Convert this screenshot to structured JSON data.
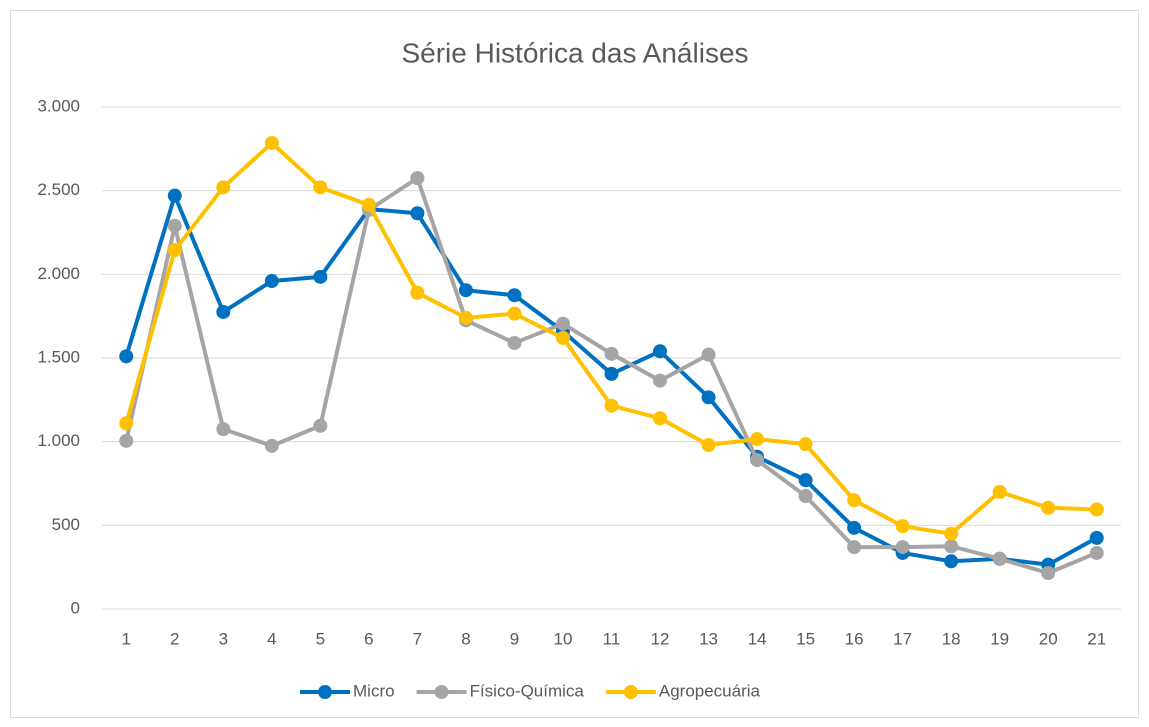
{
  "chart_data": {
    "type": "line",
    "title": "Série Histórica das Análises",
    "categories": [
      "1",
      "2",
      "3",
      "4",
      "5",
      "6",
      "7",
      "8",
      "9",
      "10",
      "11",
      "12",
      "13",
      "14",
      "15",
      "16",
      "17",
      "18",
      "19",
      "20",
      "21"
    ],
    "series": [
      {
        "name": "Micro",
        "color": "#0070c0",
        "values": [
          1510,
          2470,
          1775,
          1960,
          1985,
          2390,
          2365,
          1905,
          1875,
          1660,
          1405,
          1540,
          1265,
          910,
          770,
          485,
          335,
          285,
          300,
          265,
          425
        ]
      },
      {
        "name": "Físico-Química",
        "color": "#a5a5a5",
        "values": [
          1005,
          2290,
          1075,
          975,
          1095,
          2385,
          2575,
          1725,
          1590,
          1705,
          1525,
          1365,
          1520,
          890,
          675,
          370,
          370,
          375,
          300,
          215,
          335
        ]
      },
      {
        "name": "Agropecuária",
        "color": "#ffc000",
        "values": [
          1110,
          2145,
          2520,
          2785,
          2520,
          2415,
          1890,
          1740,
          1765,
          1620,
          1215,
          1140,
          980,
          1015,
          985,
          650,
          495,
          450,
          700,
          605,
          595
        ]
      }
    ],
    "ylim": [
      0,
      3000
    ],
    "yticks": [
      0,
      500,
      {
        "value": 1000,
        "label": "1.000"
      },
      {
        "value": 1500,
        "label": "1.500"
      },
      {
        "value": 2000,
        "label": "2.000"
      },
      {
        "value": 2500,
        "label": "2.500"
      },
      {
        "value": 3000,
        "label": "3.000"
      }
    ],
    "grid": true,
    "legend": "bottom"
  }
}
